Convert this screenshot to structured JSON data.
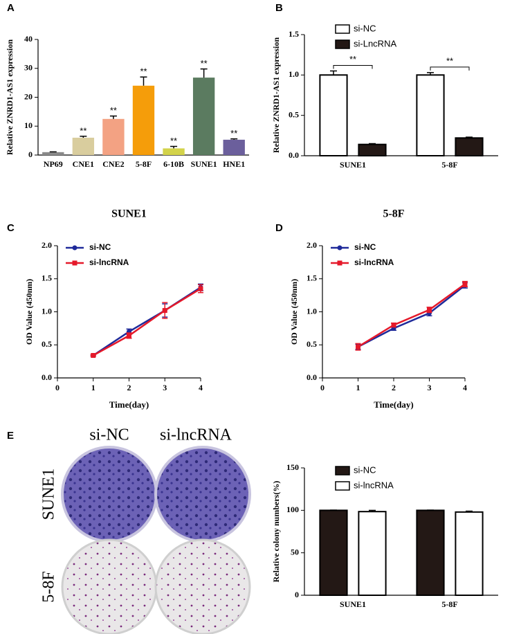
{
  "chart_data": [
    {
      "panel": "A",
      "type": "bar",
      "ylabel": "Relative ZNRD1-AS1 expression",
      "categories": [
        "NP69",
        "CNE1",
        "CNE2",
        "5-8F",
        "6-10B",
        "SUNE1",
        "HNE1"
      ],
      "values": [
        1,
        6,
        12.5,
        24,
        2.3,
        26.8,
        5.3
      ],
      "errors": [
        0.1,
        0.5,
        1,
        3,
        0.7,
        3,
        0.3
      ],
      "colors": [
        "#8a8a8a",
        "#d9cd9e",
        "#f3a283",
        "#f59d0a",
        "#d3d34a",
        "#5b7b60",
        "#6b5f9c"
      ],
      "value_annotations": [
        null,
        "**",
        "**",
        "**",
        "**",
        "**",
        "**"
      ],
      "ylim": [
        0,
        40
      ],
      "yticks": [
        0,
        10,
        20,
        30,
        40
      ]
    },
    {
      "panel": "B",
      "type": "bar",
      "ylabel": "Relative ZNRD1-AS1 expression",
      "categories": [
        "SUNE1",
        "5-8F"
      ],
      "series": [
        {
          "name": "si-NC",
          "color": "#ffffff",
          "values": [
            1.0,
            1.0
          ],
          "errors": [
            0.05,
            0.03
          ]
        },
        {
          "name": "si-LncRNA",
          "color": "#231815",
          "values": [
            0.14,
            0.22
          ],
          "errors": [
            0.01,
            0.01
          ]
        }
      ],
      "significance": [
        "**",
        "**"
      ],
      "legend": "upper-left",
      "ylim": [
        0,
        1.5
      ],
      "yticks": [
        {
          "value": 0,
          "label": "0.0"
        },
        {
          "value": 0.5,
          "label": "0.5"
        },
        {
          "value": 1,
          "label": "1.0"
        },
        {
          "value": 1.5,
          "label": "1.5"
        }
      ]
    },
    {
      "panel": "C",
      "type": "line",
      "title": "SUNE1",
      "xlabel": "Time(day)",
      "ylabel": "OD Value (450nm)",
      "x": [
        1,
        2,
        3,
        4
      ],
      "series": [
        {
          "name": "si-NC",
          "color": "#1f2a9a",
          "marker": "circle",
          "values": [
            0.34,
            0.7,
            1.02,
            1.37
          ],
          "errors": [
            0.01,
            0.04,
            0.1,
            0.05
          ]
        },
        {
          "name": "si-lncRNA",
          "color": "#e5192a",
          "marker": "square",
          "values": [
            0.34,
            0.64,
            1.02,
            1.35
          ],
          "errors": [
            0.01,
            0.04,
            0.12,
            0.06
          ]
        }
      ],
      "legend": "upper-left",
      "xlim": [
        0,
        4
      ],
      "xticks": [
        0,
        1,
        2,
        3,
        4
      ],
      "ylim": [
        0,
        2
      ],
      "yticks": [
        {
          "value": 0,
          "label": "0.0"
        },
        {
          "value": 0.5,
          "label": "0.5"
        },
        {
          "value": 1,
          "label": "1.0"
        },
        {
          "value": 1.5,
          "label": "1.5"
        },
        {
          "value": 2,
          "label": "2.0"
        }
      ]
    },
    {
      "panel": "D",
      "type": "line",
      "title": "5-8F",
      "xlabel": "Time(day)",
      "ylabel": "OD Value (450nm)",
      "x": [
        1,
        2,
        3,
        4
      ],
      "series": [
        {
          "name": "si-NC",
          "color": "#1f2a9a",
          "marker": "circle",
          "values": [
            0.47,
            0.75,
            0.98,
            1.4
          ],
          "errors": [
            0.04,
            0.03,
            0.04,
            0.04
          ]
        },
        {
          "name": "si-lncRNA",
          "color": "#e5192a",
          "marker": "square",
          "values": [
            0.47,
            0.8,
            1.03,
            1.42
          ],
          "errors": [
            0.05,
            0.03,
            0.04,
            0.04
          ]
        }
      ],
      "legend": "upper-left",
      "xlim": [
        0,
        4
      ],
      "xticks": [
        0,
        1,
        2,
        3,
        4
      ],
      "ylim": [
        0,
        2
      ],
      "yticks": [
        {
          "value": 0,
          "label": "0.0"
        },
        {
          "value": 0.5,
          "label": "0.5"
        },
        {
          "value": 1,
          "label": "1.0"
        },
        {
          "value": 1.5,
          "label": "1.5"
        },
        {
          "value": 2,
          "label": "2.0"
        }
      ]
    },
    {
      "type": "bar",
      "ylabel": "Relative colony numbers(%)",
      "categories": [
        "SUNE1",
        "5-8F"
      ],
      "series": [
        {
          "name": "si-NC",
          "color": "#231815",
          "values": [
            100,
            100
          ],
          "errors": [
            0.3,
            0.3
          ]
        },
        {
          "name": "si-lncRNA",
          "color": "#ffffff",
          "values": [
            98.5,
            98
          ],
          "errors": [
            1.5,
            1
          ]
        }
      ],
      "legend": "upper-left",
      "ylim": [
        0,
        150
      ],
      "yticks": [
        0,
        50,
        100,
        150
      ]
    }
  ],
  "colony_images": {
    "panel": "E",
    "columns": [
      "si-NC",
      "si-lncRNA"
    ],
    "rows": [
      "SUNE1",
      "5-8F"
    ]
  }
}
